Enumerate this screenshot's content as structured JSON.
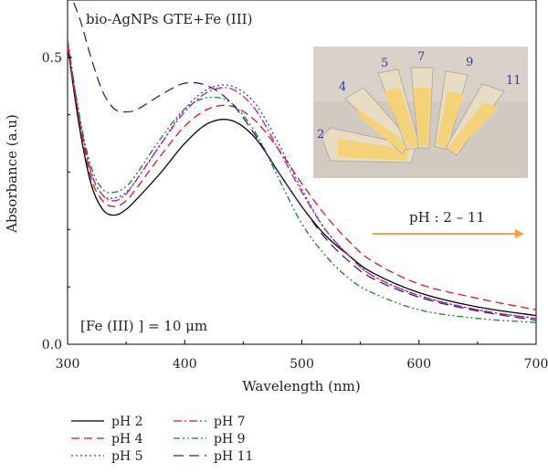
{
  "chart_data": {
    "type": "line",
    "title": "",
    "xlabel": "Wavelength (nm)",
    "ylabel": "Absorbance (a.u)",
    "xlim": [
      300,
      700
    ],
    "ylim": [
      0.0,
      0.6
    ],
    "xticks": [
      300,
      400,
      500,
      600,
      700
    ],
    "xtick_labels": [
      "300",
      "400",
      "500",
      "600",
      "700"
    ],
    "yticks": [
      0.0,
      0.5
    ],
    "ytick_labels": [
      "0.0",
      "0.5"
    ],
    "grid": false,
    "legend_position": "bottom-left",
    "annotations": {
      "sample": "bio-AgNPs GTE+Fe (III)",
      "concentration": "[Fe (III) ] = 10 μm",
      "ph_range": "pH : 2 – 11",
      "tube_labels": [
        "2",
        "4",
        "5",
        "7",
        "9",
        "11"
      ]
    },
    "colors": {
      "arrow": "#f5a14a",
      "photo_background": "#d2c9c0",
      "tube_liquid": "#f4d27a"
    },
    "x": [
      300,
      310,
      320,
      330,
      340,
      350,
      360,
      380,
      400,
      420,
      440,
      460,
      480,
      500,
      520,
      540,
      560,
      600,
      650,
      700
    ],
    "series": [
      {
        "name": "pH 2",
        "color": "#000000",
        "dash": "",
        "values": [
          0.52,
          0.38,
          0.28,
          0.235,
          0.225,
          0.235,
          0.255,
          0.3,
          0.35,
          0.385,
          0.39,
          0.36,
          0.3,
          0.24,
          0.19,
          0.155,
          0.125,
          0.09,
          0.065,
          0.05
        ]
      },
      {
        "name": "pH 4",
        "color": "#d7191c",
        "dash": "9,5",
        "values": [
          0.52,
          0.39,
          0.29,
          0.25,
          0.24,
          0.25,
          0.275,
          0.33,
          0.38,
          0.41,
          0.415,
          0.39,
          0.34,
          0.28,
          0.225,
          0.18,
          0.145,
          0.105,
          0.08,
          0.06
        ]
      },
      {
        "name": "pH 5",
        "color": "#2a3dbf",
        "dash": "2,3",
        "values": [
          0.53,
          0.4,
          0.3,
          0.26,
          0.255,
          0.265,
          0.29,
          0.35,
          0.41,
          0.445,
          0.45,
          0.42,
          0.35,
          0.27,
          0.2,
          0.155,
          0.12,
          0.085,
          0.06,
          0.045
        ]
      },
      {
        "name": "pH 7",
        "color": "#c71585",
        "dash": "9,3,2,3",
        "values": [
          0.53,
          0.395,
          0.3,
          0.26,
          0.25,
          0.262,
          0.29,
          0.35,
          0.405,
          0.44,
          0.445,
          0.41,
          0.34,
          0.265,
          0.2,
          0.155,
          0.12,
          0.085,
          0.06,
          0.045
        ]
      },
      {
        "name": "pH 9",
        "color": "#1a7a3a",
        "dash": "7,3,2,3,2,3",
        "values": [
          0.53,
          0.4,
          0.31,
          0.27,
          0.265,
          0.275,
          0.3,
          0.36,
          0.41,
          0.43,
          0.42,
          0.37,
          0.29,
          0.21,
          0.155,
          0.115,
          0.09,
          0.06,
          0.045,
          0.038
        ]
      },
      {
        "name": "pH 11",
        "color": "#262680",
        "dash": "11,6",
        "values": [
          0.62,
          0.57,
          0.5,
          0.44,
          0.41,
          0.405,
          0.41,
          0.435,
          0.455,
          0.45,
          0.42,
          0.365,
          0.3,
          0.24,
          0.185,
          0.145,
          0.115,
          0.082,
          0.058,
          0.042
        ]
      }
    ]
  }
}
